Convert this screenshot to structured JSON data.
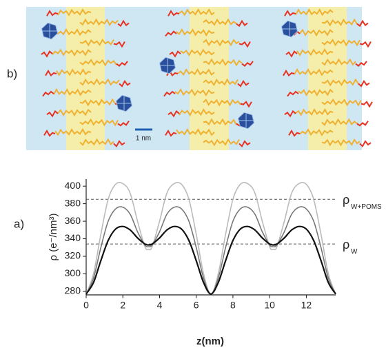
{
  "illustration": {
    "label": "b)",
    "scale_bar": "1 nm"
  },
  "chart_data": {
    "type": "line",
    "panel_label": "a)",
    "x_label": "z(nm)",
    "y_label": "ρ (e⁻/nm³)",
    "x": [
      0,
      0.4,
      0.8,
      1.2,
      1.6,
      2.0,
      2.4,
      2.8,
      3.2,
      3.4,
      3.6,
      4.0,
      4.4,
      4.8,
      5.2,
      5.6,
      6.0,
      6.4,
      6.8,
      7.2,
      7.6,
      8.0,
      8.4,
      8.8,
      9.2,
      9.6,
      10.0,
      10.2,
      10.4,
      10.8,
      11.2,
      11.6,
      12.0,
      12.4,
      12.8,
      13.2,
      13.6
    ],
    "series": [
      {
        "color": "#bbbbbb",
        "values": [
          277,
          300,
          345,
          385,
          402,
          403,
          392,
          360,
          331,
          328,
          331,
          360,
          392,
          403,
          402,
          385,
          345,
          300,
          277,
          300,
          345,
          385,
          402,
          403,
          392,
          360,
          331,
          328,
          331,
          360,
          392,
          403,
          402,
          385,
          345,
          300,
          277
        ]
      },
      {
        "color": "#777777",
        "values": [
          277,
          295,
          330,
          360,
          374,
          376,
          368,
          348,
          333,
          331,
          333,
          348,
          368,
          376,
          374,
          360,
          330,
          295,
          277,
          295,
          330,
          360,
          374,
          376,
          368,
          348,
          333,
          331,
          333,
          348,
          368,
          376,
          374,
          360,
          330,
          295,
          277
        ]
      },
      {
        "color": "#111111",
        "values": [
          277,
          290,
          315,
          338,
          351,
          354,
          350,
          341,
          334,
          333,
          334,
          341,
          350,
          354,
          351,
          338,
          315,
          290,
          277,
          290,
          315,
          338,
          351,
          354,
          350,
          341,
          334,
          333,
          334,
          341,
          350,
          354,
          351,
          338,
          315,
          290,
          277
        ]
      }
    ],
    "hlines": [
      {
        "value": 385,
        "label": "ρ",
        "subscript": "W+POMS"
      },
      {
        "value": 334,
        "label": "ρ",
        "subscript": "W"
      }
    ],
    "xlim": [
      0,
      13.6
    ],
    "ylim": [
      276,
      408
    ],
    "xticks": [
      0,
      2,
      4,
      6,
      8,
      10,
      12
    ],
    "yticks": [
      280,
      300,
      320,
      340,
      360,
      380,
      400
    ]
  }
}
